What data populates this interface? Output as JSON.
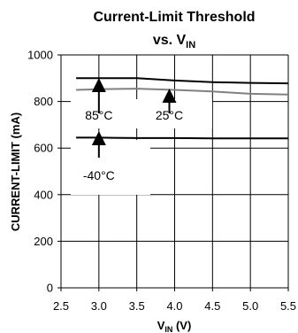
{
  "chart_data": {
    "type": "line",
    "title": {
      "line1": "Current-Limit Threshold",
      "line2_prefix": "vs. V",
      "line2_sub": "IN"
    },
    "xlabel": {
      "prefix": "V",
      "sub": "IN",
      "suffix": " (V)"
    },
    "ylabel": "CURRENT-LIMIT (mA)",
    "xlim": [
      2.5,
      5.5
    ],
    "ylim": [
      0,
      1000
    ],
    "xticks": [
      "2.5",
      "3.0",
      "3.5",
      "4.0",
      "4.5",
      "5.0",
      "5.5"
    ],
    "yticks": [
      "0",
      "200",
      "400",
      "600",
      "800",
      "1000"
    ],
    "grid": true,
    "series": [
      {
        "name": "85°C",
        "color": "#000000",
        "x": [
          2.7,
          3.5,
          4.0,
          4.5,
          5.0,
          5.5
        ],
        "y": [
          900,
          900,
          890,
          883,
          880,
          878
        ]
      },
      {
        "name": "25°C",
        "color": "#808080",
        "x": [
          2.7,
          3.0,
          3.5,
          4.0,
          4.5,
          5.0,
          5.5
        ],
        "y": [
          850,
          853,
          855,
          850,
          843,
          833,
          830
        ]
      },
      {
        "name": "-40°C",
        "color": "#000000",
        "x": [
          2.7,
          3.0,
          3.5,
          4.0,
          4.5,
          5.0,
          5.5
        ],
        "y": [
          645,
          645,
          643,
          643,
          642,
          642,
          642
        ]
      }
    ],
    "annotations": [
      {
        "text": "85°C",
        "arrow_x": 3.0,
        "arrow_tip_y": 880
      },
      {
        "text": "25°C",
        "arrow_x": 3.93,
        "arrow_tip_y": 850
      },
      {
        "text": "-40°C",
        "arrow_x": 3.0,
        "arrow_tip_y": 650
      }
    ]
  }
}
